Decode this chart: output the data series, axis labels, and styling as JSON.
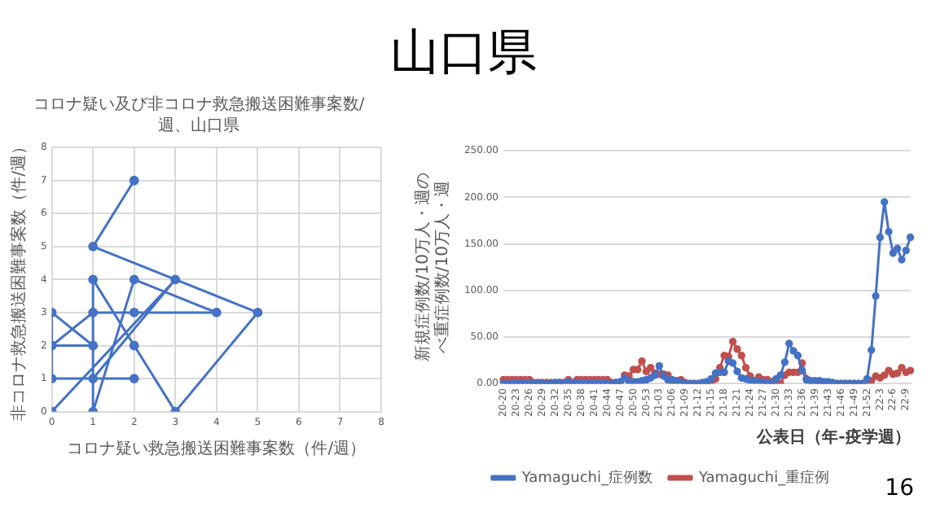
{
  "chart_data": [
    {
      "type": "other",
      "title": "山口県",
      "annotations": [
        "16"
      ]
    },
    {
      "type": "line",
      "title": "コロナ疑い及び非コロナ救急搬送困難事案数/週、山口県",
      "xlabel": "コロナ疑い救急搬送困難事案数（件/週）",
      "ylabel": "非コロナ救急搬送困難事案数（件/週）",
      "x": [
        0,
        3,
        1,
        2,
        0,
        0,
        1,
        0,
        1,
        2,
        4,
        2,
        1,
        1,
        2,
        3,
        5,
        1,
        2
      ],
      "series": [
        {
          "color": "#4472c4",
          "values": [
            0,
            4,
            1,
            1,
            1,
            3,
            2,
            2,
            3,
            3,
            3,
            4,
            0,
            4,
            2,
            0,
            3,
            5,
            7
          ]
        }
      ],
      "xlim": [
        0,
        8
      ],
      "ylim": [
        0,
        8
      ],
      "xticks": [
        0,
        1,
        2,
        3,
        4,
        5,
        6,
        7,
        8
      ],
      "yticks": [
        0,
        1,
        2,
        3,
        4,
        5,
        6,
        7,
        8
      ],
      "grid": true,
      "marker": "circle"
    },
    {
      "type": "line",
      "xlabel": "公表日（年-疫学週）",
      "ylabel": "新規症例数/10万人・週のべ重症例数/10万人・週",
      "categories": [
        "20-20",
        null,
        null,
        "20-23",
        null,
        null,
        "20-26",
        null,
        null,
        "20-29",
        null,
        null,
        "20-32",
        null,
        null,
        "20-35",
        null,
        null,
        "20-38",
        null,
        null,
        "20-41",
        null,
        null,
        "20-44",
        null,
        null,
        "20-47",
        null,
        null,
        "20-50",
        null,
        null,
        "20-53",
        null,
        null,
        "21-03",
        null,
        null,
        "21-06",
        null,
        null,
        "21-09",
        null,
        null,
        "21-12",
        null,
        null,
        "21-15",
        null,
        null,
        "21-18",
        null,
        null,
        "21-21",
        null,
        null,
        "21-24",
        null,
        null,
        "21-27",
        null,
        null,
        "21-30",
        null,
        null,
        "21-33",
        null,
        null,
        "21-36",
        null,
        null,
        "21-39",
        null,
        null,
        "21-43",
        null,
        null,
        "21-46",
        null,
        null,
        "21-49",
        null,
        null,
        "21-52",
        null,
        null,
        "22-3",
        null,
        null,
        "22-6",
        null,
        null,
        "22-9",
        null
      ],
      "series": [
        {
          "name": "Yamaguchi_症例数",
          "color": "#4472c4",
          "values": [
            0,
            0,
            0,
            0,
            0,
            0,
            0,
            0,
            0,
            0,
            0,
            0,
            1,
            1,
            0,
            2,
            1,
            0,
            0,
            0,
            0,
            0,
            0,
            0,
            0,
            0,
            1,
            2,
            6,
            2,
            2,
            2,
            3,
            4,
            6,
            9,
            19,
            8,
            4,
            4,
            3,
            1,
            0,
            0,
            0,
            0,
            1,
            2,
            5,
            11,
            12,
            12,
            24,
            22,
            13,
            6,
            5,
            3,
            3,
            2,
            1,
            1,
            0,
            5,
            9,
            23,
            43,
            35,
            30,
            14,
            4,
            3,
            3,
            3,
            2,
            2,
            1,
            0,
            0,
            0,
            0,
            0,
            0,
            0,
            5,
            36,
            94,
            157,
            195,
            163,
            140,
            145,
            133,
            143,
            157
          ]
        },
        {
          "name": "Yamaguchi_重症例",
          "color": "#c0504d",
          "values": [
            4,
            4,
            4,
            4,
            4,
            4,
            4,
            1,
            1,
            1,
            1,
            1,
            1,
            1,
            1,
            4,
            0,
            4,
            4,
            4,
            4,
            4,
            4,
            4,
            4,
            1,
            1,
            1,
            9,
            8,
            15,
            15,
            24,
            13,
            17,
            11,
            10,
            10,
            9,
            1,
            3,
            4,
            1,
            0,
            0,
            0,
            0,
            0,
            0,
            5,
            17,
            30,
            29,
            45,
            37,
            30,
            17,
            8,
            3,
            7,
            4,
            4,
            2,
            0,
            0,
            9,
            12,
            12,
            12,
            22,
            5,
            0,
            0,
            0,
            0,
            0,
            0,
            0,
            0,
            0,
            0,
            0,
            0,
            0,
            2,
            3,
            8,
            6,
            9,
            14,
            10,
            11,
            17,
            12,
            14
          ]
        }
      ],
      "ylim": [
        0,
        250
      ],
      "yticks": [
        {
          "value": 0,
          "label": "0.00"
        },
        {
          "value": 50,
          "label": "50.00"
        },
        {
          "value": 100,
          "label": "100.00"
        },
        {
          "value": 150,
          "label": "150.00"
        },
        {
          "value": 200,
          "label": "200.00"
        },
        {
          "value": 250,
          "label": "250.00"
        }
      ],
      "grid": "y",
      "legend": "bottom",
      "marker": "circle"
    }
  ]
}
